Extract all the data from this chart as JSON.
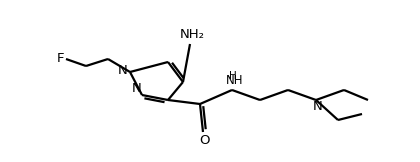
{
  "bg_color": "#ffffff",
  "line_color": "#000000",
  "line_width": 1.6,
  "font_size": 8.5,
  "figsize": [
    4.2,
    1.62
  ],
  "dpi": 100,
  "xlim": [
    0,
    420
  ],
  "ylim": [
    0,
    162
  ]
}
